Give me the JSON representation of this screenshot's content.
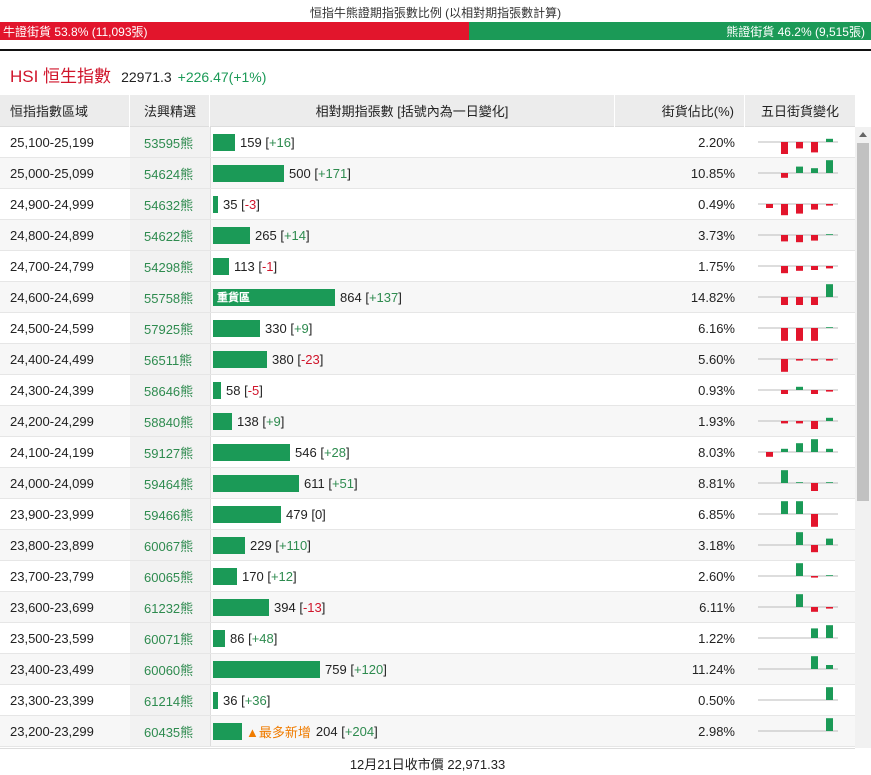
{
  "ratio": {
    "title": "恒指牛熊證期指張數比例 (以相對期指張數計算)",
    "bull_label": "牛證街貨 53.8% (11,093張)",
    "bear_label": "熊證街貨 46.2% (9,515張)",
    "bull_pct": 53.8,
    "bull_color": "#e2152c",
    "bear_color": "#1b9a57"
  },
  "index": {
    "name": "HSI 恒生指數",
    "price": "22971.3",
    "change": "+226.47(+1%)"
  },
  "columns": {
    "range": "恒指指數區域",
    "warrant": "法興精選",
    "contracts": "相對期指張數 [括號內為一日變化]",
    "pct": "街貨佔比(%)",
    "five_day": "五日街貨變化"
  },
  "max_contracts": 864,
  "rows": [
    {
      "range": "25,100-25,199",
      "warrant": "53595熊",
      "contracts": 159,
      "value_text": "159",
      "change": "+16",
      "pct": "2.20%",
      "spark": [
        0,
        -1.5,
        -0.8,
        -1.3,
        0.4
      ]
    },
    {
      "range": "25,000-25,099",
      "warrant": "54624熊",
      "contracts": 500,
      "value_text": "500",
      "change": "+171",
      "pct": "10.85%",
      "spark": [
        0,
        -0.6,
        0.8,
        0.6,
        1.6
      ]
    },
    {
      "range": "24,900-24,999",
      "warrant": "54632熊",
      "contracts": 35,
      "value_text": "35",
      "change": "-3",
      "pct": "0.49%",
      "spark": [
        -0.5,
        -1.4,
        -1.2,
        -0.7,
        -0.2
      ]
    },
    {
      "range": "24,800-24,899",
      "warrant": "54622熊",
      "contracts": 265,
      "value_text": "265",
      "change": "+14",
      "pct": "3.73%",
      "spark": [
        0,
        -0.8,
        -0.9,
        -0.7,
        0.1
      ]
    },
    {
      "range": "24,700-24,799",
      "warrant": "54298熊",
      "contracts": 113,
      "value_text": "113",
      "change": "-1",
      "pct": "1.75%",
      "spark": [
        0,
        -0.9,
        -0.6,
        -0.5,
        -0.3
      ]
    },
    {
      "range": "24,600-24,699",
      "warrant": "55758熊",
      "contracts": 864,
      "value_text": "864",
      "change": "+137",
      "pct": "14.82%",
      "label": "重貨區",
      "spark": [
        0,
        -1.0,
        -1.0,
        -1.0,
        1.6
      ]
    },
    {
      "range": "24,500-24,599",
      "warrant": "57925熊",
      "contracts": 330,
      "value_text": "330",
      "change": "+9",
      "pct": "6.16%",
      "spark": [
        0,
        -1.6,
        -1.6,
        -1.6,
        0.1
      ]
    },
    {
      "range": "24,400-24,499",
      "warrant": "56511熊",
      "contracts": 380,
      "value_text": "380",
      "change": "-23",
      "pct": "5.60%",
      "spark": [
        0,
        -1.6,
        -0.2,
        -0.2,
        -0.2
      ]
    },
    {
      "range": "24,300-24,399",
      "warrant": "58646熊",
      "contracts": 58,
      "value_text": "58",
      "change": "-5",
      "pct": "0.93%",
      "spark": [
        0,
        -0.5,
        0.4,
        -0.5,
        -0.2
      ]
    },
    {
      "range": "24,200-24,299",
      "warrant": "58840熊",
      "contracts": 138,
      "value_text": "138",
      "change": "+9",
      "pct": "1.93%",
      "spark": [
        0,
        -0.3,
        -0.3,
        -1.0,
        0.4
      ]
    },
    {
      "range": "24,100-24,199",
      "warrant": "59127熊",
      "contracts": 546,
      "value_text": "546",
      "change": "+28",
      "pct": "8.03%",
      "spark": [
        -0.6,
        0.4,
        1.1,
        1.6,
        0.4
      ]
    },
    {
      "range": "24,000-24,099",
      "warrant": "59464熊",
      "contracts": 611,
      "value_text": "611",
      "change": "+51",
      "pct": "8.81%",
      "spark": [
        0,
        1.6,
        0.1,
        -1.0,
        0.1
      ]
    },
    {
      "range": "23,900-23,999",
      "warrant": "59466熊",
      "contracts": 479,
      "value_text": "479",
      "change": "0",
      "pct": "6.85%",
      "spark": [
        0,
        1.6,
        1.6,
        -1.6,
        0
      ]
    },
    {
      "range": "23,800-23,899",
      "warrant": "60067熊",
      "contracts": 229,
      "value_text": "229",
      "change": "+110",
      "pct": "3.18%",
      "spark": [
        0,
        0,
        1.6,
        -0.9,
        0.8
      ]
    },
    {
      "range": "23,700-23,799",
      "warrant": "60065熊",
      "contracts": 170,
      "value_text": "170",
      "change": "+12",
      "pct": "2.60%",
      "spark": [
        0,
        0,
        1.6,
        -0.2,
        0.1
      ]
    },
    {
      "range": "23,600-23,699",
      "warrant": "61232熊",
      "contracts": 394,
      "value_text": "394",
      "change": "-13",
      "pct": "6.11%",
      "spark": [
        0,
        0,
        1.6,
        -0.6,
        -0.2
      ]
    },
    {
      "range": "23,500-23,599",
      "warrant": "60071熊",
      "contracts": 86,
      "value_text": "86",
      "change": "+48",
      "pct": "1.22%",
      "spark": [
        0,
        0,
        0,
        1.2,
        1.6
      ]
    },
    {
      "range": "23,400-23,499",
      "warrant": "60060熊",
      "contracts": 759,
      "value_text": "759",
      "change": "+120",
      "pct": "11.24%",
      "spark": [
        0,
        0,
        0,
        1.6,
        0.5
      ]
    },
    {
      "range": "23,300-23,399",
      "warrant": "61214熊",
      "contracts": 36,
      "value_text": "36",
      "change": "+36",
      "pct": "0.50%",
      "spark": [
        0,
        0,
        0,
        0,
        1.6
      ]
    },
    {
      "range": "23,200-23,299",
      "warrant": "60435熊",
      "contracts": 204,
      "value_text": "204",
      "change": "+204",
      "pct": "2.98%",
      "new_tag": "▲最多新增",
      "spark": [
        0,
        0,
        0,
        0,
        1.6
      ]
    }
  ],
  "footer": "12月21日收市價 22,971.33",
  "colors": {
    "up": "#1b9a57",
    "down": "#e2152c"
  }
}
